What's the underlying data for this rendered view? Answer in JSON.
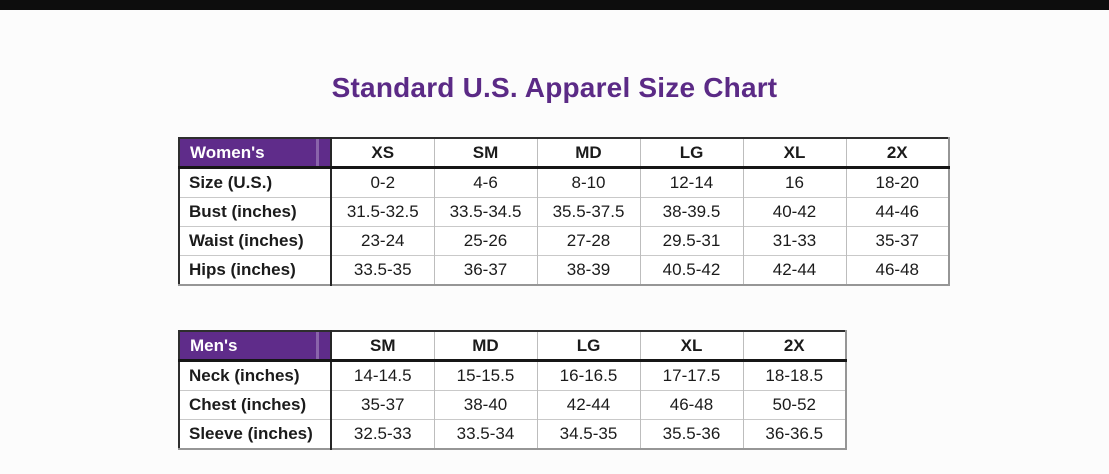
{
  "page": {
    "title": "Standard U.S. Apparel Size Chart"
  },
  "colors": {
    "title-purple": "#5b2a86",
    "header-purple": "#5f2c8a",
    "header-purple-stripe": "#8a64ab",
    "top-bar-black": "#0d0d0d"
  },
  "womens_table": {
    "corner_label": "Women's",
    "columns": [
      "XS",
      "SM",
      "MD",
      "LG",
      "XL",
      "2X"
    ],
    "rows": [
      {
        "label": "Size (U.S.)",
        "values": [
          "0-2",
          "4-6",
          "8-10",
          "12-14",
          "16",
          "18-20"
        ]
      },
      {
        "label": "Bust (inches)",
        "values": [
          "31.5-32.5",
          "33.5-34.5",
          "35.5-37.5",
          "38-39.5",
          "40-42",
          "44-46"
        ]
      },
      {
        "label": "Waist (inches)",
        "values": [
          "23-24",
          "25-26",
          "27-28",
          "29.5-31",
          "31-33",
          "35-37"
        ]
      },
      {
        "label": "Hips (inches)",
        "values": [
          "33.5-35",
          "36-37",
          "38-39",
          "40.5-42",
          "42-44",
          "46-48"
        ]
      }
    ]
  },
  "mens_table": {
    "corner_label": "Men's",
    "columns": [
      "SM",
      "MD",
      "LG",
      "XL",
      "2X"
    ],
    "rows": [
      {
        "label": "Neck (inches)",
        "values": [
          "14-14.5",
          "15-15.5",
          "16-16.5",
          "17-17.5",
          "18-18.5"
        ]
      },
      {
        "label": "Chest (inches)",
        "values": [
          "35-37",
          "38-40",
          "42-44",
          "46-48",
          "50-52"
        ]
      },
      {
        "label": "Sleeve (inches)",
        "values": [
          "32.5-33",
          "33.5-34",
          "34.5-35",
          "35.5-36",
          "36-36.5"
        ]
      }
    ]
  }
}
